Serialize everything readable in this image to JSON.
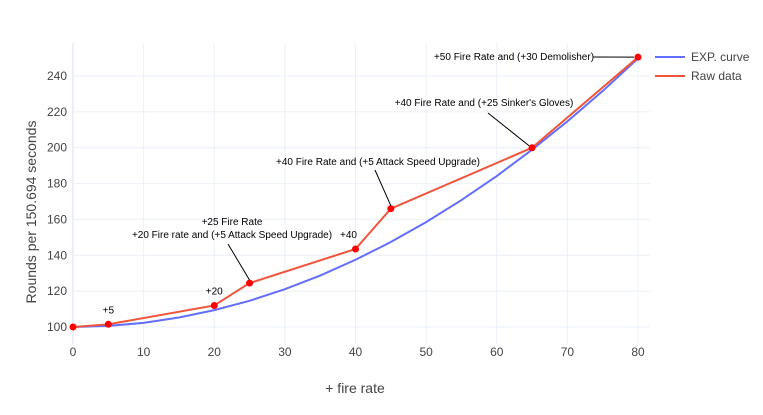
{
  "chart_data": {
    "type": "line",
    "title": "",
    "xlabel": "+ fire rate",
    "ylabel": "Rounds per 150.694 seconds",
    "xlim": [
      0,
      80
    ],
    "ylim": [
      95,
      258
    ],
    "x_ticks": [
      0,
      10,
      20,
      30,
      40,
      50,
      60,
      70,
      80
    ],
    "y_ticks": [
      100,
      120,
      140,
      160,
      180,
      200,
      220,
      240
    ],
    "grid": true,
    "legend_position": "top-right",
    "series": [
      {
        "name": "EXP. curve",
        "color": "#636efa",
        "mode": "lines",
        "x": [
          0,
          5,
          10,
          15,
          20,
          25,
          30,
          35,
          40,
          45,
          50,
          55,
          60,
          65,
          70,
          75,
          80
        ],
        "y": [
          100,
          100.6,
          102.3,
          105.3,
          109.4,
          114.6,
          121.1,
          128.7,
          137.5,
          147.4,
          158.5,
          170.8,
          184.2,
          198.9,
          214.7,
          231.6,
          249.8
        ]
      },
      {
        "name": "Raw data",
        "color": "#ef553b",
        "mode": "lines+markers",
        "marker_color": "#ff0000",
        "x": [
          0,
          5,
          20,
          25,
          40,
          45,
          65,
          80
        ],
        "y": [
          100,
          101.5,
          112,
          124.5,
          143.5,
          166,
          200,
          250.5
        ]
      }
    ],
    "annotations": [
      {
        "text": "+5",
        "x": 5,
        "y": 101.5,
        "arrow": false
      },
      {
        "text": "+20",
        "x": 20,
        "y": 112,
        "arrow": false
      },
      {
        "text": "+25 Fire Rate",
        "x": 25,
        "y": 124.5,
        "arrow": true,
        "line": 1
      },
      {
        "text": "+20 Fire rate and (+5 Attack Speed Upgrade)",
        "x": 25,
        "y": 124.5,
        "arrow": true,
        "line": 2
      },
      {
        "text": "+40",
        "x": 40,
        "y": 143.5,
        "arrow": false
      },
      {
        "text": "+40 Fire Rate and (+5 Attack Speed Upgrade)",
        "x": 45,
        "y": 166,
        "arrow": true
      },
      {
        "text": "+40 Fire Rate and (+25 Sinker's Gloves)",
        "x": 65,
        "y": 200,
        "arrow": true
      },
      {
        "text": "+50 Fire Rate and (+30 Demolisher)",
        "x": 80,
        "y": 250.5,
        "arrow": true
      }
    ]
  },
  "legend": {
    "items": [
      {
        "label": "EXP. curve",
        "color": "#636efa"
      },
      {
        "label": "Raw data",
        "color": "#ef553b"
      }
    ]
  }
}
